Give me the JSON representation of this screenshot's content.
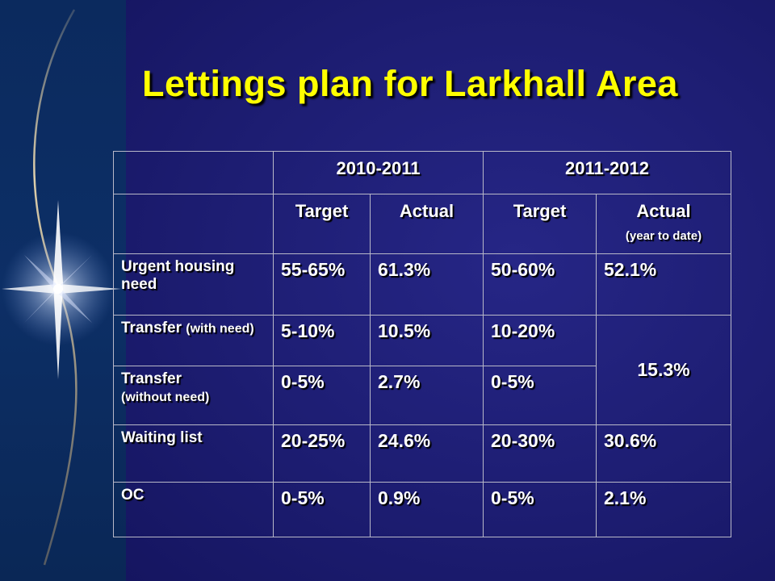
{
  "slide": {
    "title": "Lettings plan for Larkhall Area"
  },
  "table": {
    "years": [
      "2010-2011",
      "2011-2012"
    ],
    "subheaders": {
      "target": "Target",
      "actual": "Actual",
      "actual_note": "(year to date)"
    },
    "rows": [
      {
        "label": "Urgent housing need",
        "label_note": "",
        "t1": "55-65%",
        "a1": "61.3%",
        "t2": "50-60%",
        "a2": "52.1%"
      },
      {
        "label": "Transfer",
        "label_note": "(with need)",
        "t1": "5-10%",
        "a1": "10.5%",
        "t2": "10-20%"
      },
      {
        "label": "Transfer",
        "label_note": "(without need)",
        "t1": "0-5%",
        "a1": "2.7%",
        "t2": "0-5%"
      },
      {
        "label": "Waiting list",
        "label_note": "",
        "t1": "20-25%",
        "a1": "24.6%",
        "t2": "20-30%",
        "a2": "30.6%"
      },
      {
        "label": "OC",
        "label_note": "",
        "t1": "0-5%",
        "a1": "0.9%",
        "t2": "0-5%",
        "a2": "2.1%"
      }
    ],
    "merged_transfer_actual": "15.3%"
  },
  "colors": {
    "title": "#ffff00",
    "background": "#1b1b6c",
    "band": "#0b2a5e",
    "text": "#ffffff"
  }
}
